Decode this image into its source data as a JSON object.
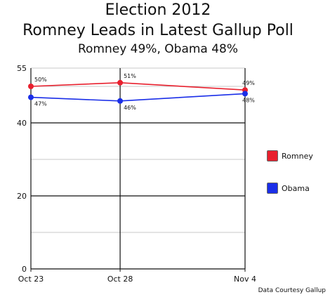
{
  "chart_data": {
    "type": "line",
    "title": "Election 2012",
    "subtitle": "Romney Leads in Latest Gallup Poll",
    "subtitle2": "Romney 49%, Obama 48%",
    "x": [
      "Oct 23",
      "Oct 28",
      "Nov 4"
    ],
    "x_days": [
      0,
      5,
      12
    ],
    "ylim": [
      0,
      55
    ],
    "yticks": [
      0,
      20,
      40,
      55
    ],
    "gridlines": [
      10,
      20,
      30,
      40,
      50,
      55
    ],
    "series": [
      {
        "name": "Romney",
        "color": "#e8202e",
        "values": [
          50,
          51,
          49
        ],
        "labels": [
          "50%",
          "51%",
          "49%"
        ]
      },
      {
        "name": "Obama",
        "color": "#1a2ee8",
        "values": [
          47,
          46,
          48
        ],
        "labels": [
          "47%",
          "46%",
          "48%"
        ]
      }
    ],
    "legend_position": "right",
    "source": "Data Courtesy Gallup"
  }
}
